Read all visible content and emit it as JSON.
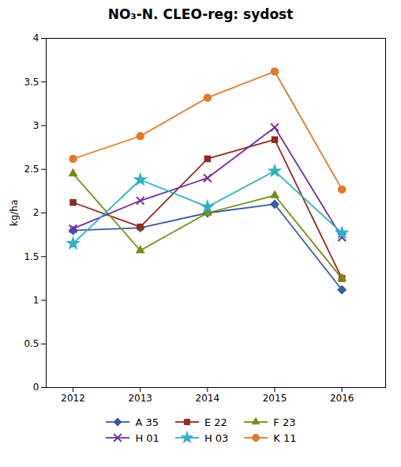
{
  "chart_data": {
    "type": "line",
    "title": "NO₃-N. CLEO-reg: sydost",
    "ylabel": "kg/ha",
    "x": [
      2012,
      2013,
      2014,
      2015,
      2016
    ],
    "series": [
      {
        "name": "A 35",
        "color": "#3a5ba0",
        "marker": "diamond",
        "values": [
          1.8,
          1.83,
          2.0,
          2.1,
          1.12
        ]
      },
      {
        "name": "E 22",
        "color": "#922b21",
        "marker": "square",
        "values": [
          2.12,
          1.84,
          2.62,
          2.84,
          1.25
        ]
      },
      {
        "name": "F 23",
        "color": "#7a8c1a",
        "marker": "triangle",
        "values": [
          2.45,
          1.57,
          2.0,
          2.2,
          1.25
        ]
      },
      {
        "name": "H 01",
        "color": "#7030a0",
        "marker": "x",
        "values": [
          1.82,
          2.14,
          2.4,
          2.98,
          1.72
        ]
      },
      {
        "name": "H 03",
        "color": "#31b0c4",
        "marker": "star",
        "values": [
          1.65,
          2.38,
          2.07,
          2.48,
          1.77
        ]
      },
      {
        "name": "K 11",
        "color": "#e07b2a",
        "marker": "circle",
        "values": [
          2.62,
          2.88,
          3.32,
          3.62,
          2.27
        ]
      }
    ],
    "xlim": [
      2011.6,
      2016.65
    ],
    "xticks": [
      2012,
      2013,
      2014,
      2015,
      2016
    ],
    "ylim": [
      0,
      4.0
    ],
    "yticks": [
      0,
      0.5,
      1.0,
      1.5,
      2.0,
      2.5,
      3.0,
      3.5,
      4.0
    ],
    "grid": false,
    "legend": "bottom"
  }
}
